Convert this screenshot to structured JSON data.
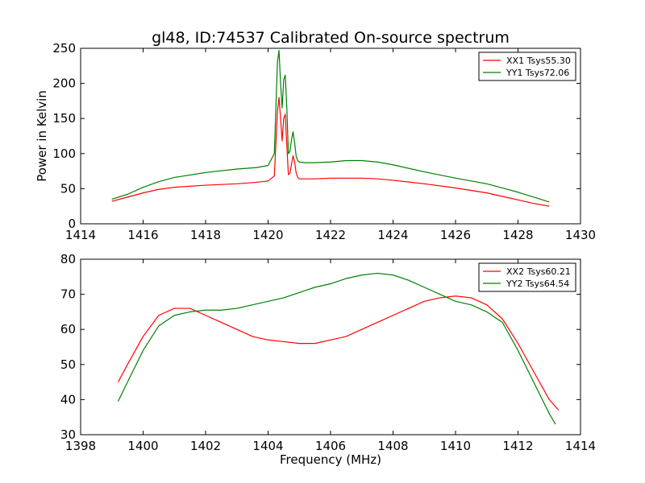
{
  "chart_data": [
    {
      "type": "line",
      "title": "gl48, ID:74537 Calibrated On-source spectrum",
      "xlabel": "",
      "ylabel": "Power in Kelvin",
      "xlim": [
        1414,
        1430
      ],
      "ylim": [
        0,
        250
      ],
      "xticks": [
        1414,
        1416,
        1418,
        1420,
        1422,
        1424,
        1426,
        1428,
        1430
      ],
      "yticks": [
        0,
        50,
        100,
        150,
        200,
        250
      ],
      "grid": false,
      "legend": "top-right",
      "series": [
        {
          "name": "XX1 Tsys55.30",
          "color": "#ff0000",
          "x": [
            1415.0,
            1415.5,
            1416.0,
            1416.5,
            1417.0,
            1418.0,
            1419.0,
            1419.6,
            1420.0,
            1420.2,
            1420.3,
            1420.35,
            1420.4,
            1420.45,
            1420.5,
            1420.55,
            1420.6,
            1420.65,
            1420.7,
            1420.75,
            1420.8,
            1420.85,
            1420.9,
            1420.95,
            1421.0,
            1421.2,
            1421.5,
            1422.0,
            1422.5,
            1423.0,
            1423.5,
            1424.0,
            1425.0,
            1426.0,
            1427.0,
            1428.0,
            1428.5,
            1429.0
          ],
          "y": [
            32,
            38,
            44,
            49,
            52,
            55,
            57,
            59,
            61,
            68,
            160,
            180,
            150,
            118,
            150,
            156,
            112,
            70,
            72,
            85,
            97,
            88,
            72,
            66,
            64,
            64,
            64,
            65,
            65,
            65,
            64,
            62,
            57,
            51,
            44,
            34,
            29,
            25
          ]
        },
        {
          "name": "YY1 Tsys72.06",
          "color": "#008000",
          "x": [
            1415.0,
            1415.5,
            1416.0,
            1416.5,
            1417.0,
            1418.0,
            1419.0,
            1419.6,
            1420.0,
            1420.2,
            1420.3,
            1420.35,
            1420.4,
            1420.45,
            1420.5,
            1420.55,
            1420.6,
            1420.65,
            1420.7,
            1420.75,
            1420.8,
            1420.85,
            1420.9,
            1420.95,
            1421.0,
            1421.2,
            1421.5,
            1422.0,
            1422.5,
            1423.0,
            1423.5,
            1424.0,
            1425.0,
            1426.0,
            1427.0,
            1428.0,
            1428.5,
            1429.0
          ],
          "y": [
            35,
            42,
            52,
            60,
            66,
            73,
            78,
            80,
            83,
            100,
            230,
            247,
            200,
            165,
            205,
            212,
            165,
            100,
            103,
            120,
            131,
            115,
            96,
            90,
            88,
            87,
            87,
            88,
            90,
            90,
            88,
            84,
            74,
            65,
            57,
            45,
            38,
            31
          ]
        }
      ]
    },
    {
      "type": "line",
      "title": "",
      "xlabel": "Frequency (MHz)",
      "ylabel": "",
      "xlim": [
        1398,
        1414
      ],
      "ylim": [
        30,
        80
      ],
      "xticks": [
        1398,
        1400,
        1402,
        1404,
        1406,
        1408,
        1410,
        1412,
        1414
      ],
      "yticks": [
        30,
        40,
        50,
        60,
        70,
        80
      ],
      "grid": false,
      "legend": "top-right",
      "series": [
        {
          "name": "XX2 Tsys60.21",
          "color": "#ff0000",
          "x": [
            1399.2,
            1399.5,
            1400.0,
            1400.5,
            1401.0,
            1401.5,
            1402.0,
            1402.5,
            1403.0,
            1403.5,
            1404.0,
            1404.5,
            1405.0,
            1405.5,
            1406.0,
            1406.5,
            1407.0,
            1407.5,
            1408.0,
            1408.5,
            1409.0,
            1409.5,
            1410.0,
            1410.5,
            1411.0,
            1411.5,
            1412.0,
            1412.5,
            1413.0,
            1413.3
          ],
          "y": [
            45,
            50,
            58,
            64,
            66,
            66,
            64,
            62,
            60,
            58,
            57,
            56.5,
            56,
            56,
            57,
            58,
            60,
            62,
            64,
            66,
            68,
            69,
            69.5,
            69,
            67,
            63,
            56,
            48,
            40,
            37
          ]
        },
        {
          "name": "YY2 Tsys64.54",
          "color": "#008000",
          "x": [
            1399.2,
            1399.5,
            1400.0,
            1400.5,
            1401.0,
            1401.5,
            1402.0,
            1402.5,
            1403.0,
            1403.5,
            1404.0,
            1404.5,
            1405.0,
            1405.5,
            1406.0,
            1406.5,
            1407.0,
            1407.5,
            1408.0,
            1408.5,
            1409.0,
            1409.5,
            1410.0,
            1410.5,
            1411.0,
            1411.5,
            1412.0,
            1412.5,
            1413.0,
            1413.2
          ],
          "y": [
            39.5,
            45,
            54,
            61,
            64,
            65,
            65.5,
            65.5,
            66,
            67,
            68,
            69,
            70.5,
            72,
            73,
            74.5,
            75.5,
            76,
            75.5,
            74,
            72,
            70,
            68,
            67,
            65,
            62,
            54,
            45,
            36,
            33
          ]
        }
      ]
    }
  ]
}
